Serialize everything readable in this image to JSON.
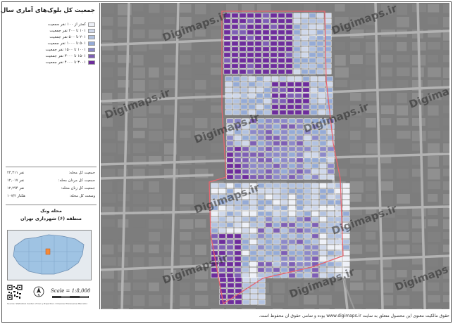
{
  "legend": {
    "title": "جمعیت کل بلوک‌های آماری سال ۱۳۹۵",
    "classes": [
      {
        "label": "کمتر از ۱۰۰ نفر جمعیت",
        "color": "#eef1f8"
      },
      {
        "label": "۱۰۱ تا ۲۰۰ نفر جمعیت",
        "color": "#cfd8eb"
      },
      {
        "label": "۲۰۱ تا ۵۰۰ نفر جمعیت",
        "color": "#b2c2e0"
      },
      {
        "label": "۵۰۱ تا ۱۰۰۰ نفر جمعیت",
        "color": "#95abd6"
      },
      {
        "label": "۱۰۰۱ تا ۱۵۰۰ نفر جمعیت",
        "color": "#8c89c8"
      },
      {
        "label": "۱۵۰۱ تا ۳۰۰۰ نفر جمعیت",
        "color": "#7e5fb4"
      },
      {
        "label": "۳۰۰۱ تا ۴۰۰۰ نفر جمعیت",
        "color": "#6d2d9c"
      }
    ]
  },
  "stats": [
    {
      "label": "جمعیت کل محله:",
      "value": "۲۴,۳۱۱ نفر"
    },
    {
      "label": "جمعیت کل مردان محله:",
      "value": "۱۲,۰۱۷ نفر"
    },
    {
      "label": "جمعیت کل زنان محله:",
      "value": "۱۲,۲۹۴ نفر"
    },
    {
      "label": "وسعت کل محله:",
      "value": "۱۰۷/۲ هکتار"
    }
  ],
  "region": {
    "neighborhood": "محله ونک",
    "district": "منطقه (۶) شهرداری تهران"
  },
  "scale": {
    "text": "Scale = 1:8,000"
  },
  "credit": "Source: Statistical Center of Iran | Projection: Universal Transverse Mercator",
  "footer": "حقوق مالکیت معنوی این محصول متعلق به سایت www.digimaps.ir بوده و تمامی حقوق آن محفوظ است.",
  "watermark": "Digimaps.ir",
  "colors": {
    "boundary": "#e8656f",
    "road": "#b3b3b3",
    "map_bg": "#7d7d7d",
    "scale_dark": "#333333",
    "scale_light": "#ffffff"
  },
  "icons": {
    "north": "north-arrow-icon",
    "qr": "qr-code-icon"
  }
}
